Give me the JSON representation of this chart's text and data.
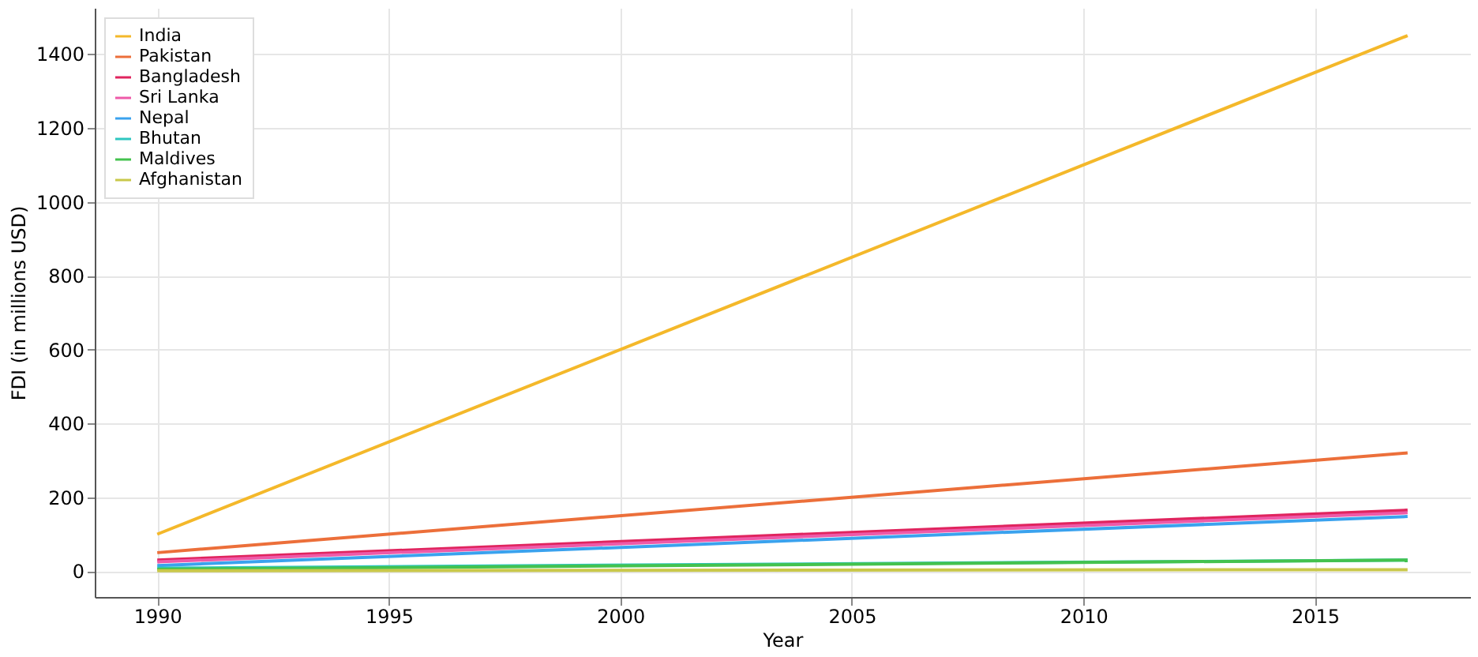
{
  "chart_data": {
    "type": "line",
    "xlabel": "Year",
    "ylabel": "FDI (in millions USD)",
    "x": [
      1990,
      2017
    ],
    "series": [
      {
        "name": "India",
        "color": "#f4b82a",
        "values": [
          100,
          1450
        ]
      },
      {
        "name": "Pakistan",
        "color": "#ec6f3a",
        "values": [
          50,
          320
        ]
      },
      {
        "name": "Bangladesh",
        "color": "#e0245e",
        "values": [
          30,
          165
        ]
      },
      {
        "name": "Sri Lanka",
        "color": "#ee5aa8",
        "values": [
          25,
          158
        ]
      },
      {
        "name": "Nepal",
        "color": "#3aa2ee",
        "values": [
          15,
          148
        ]
      },
      {
        "name": "Bhutan",
        "color": "#2ec6c0",
        "values": [
          8,
          30
        ]
      },
      {
        "name": "Maldives",
        "color": "#44c24e",
        "values": [
          5,
          30
        ]
      },
      {
        "name": "Afghanistan",
        "color": "#c9c84a",
        "values": [
          1,
          4
        ]
      }
    ],
    "xlim": [
      1988.65,
      2018.35
    ],
    "xticks": [
      1990,
      1995,
      2000,
      2005,
      2010,
      2015
    ],
    "ylim": [
      -70,
      1525
    ],
    "yticks": [
      0,
      200,
      400,
      600,
      800,
      1000,
      1200,
      1400
    ],
    "grid": true,
    "legend": "top left",
    "line_style": "solid",
    "marker": "none"
  }
}
